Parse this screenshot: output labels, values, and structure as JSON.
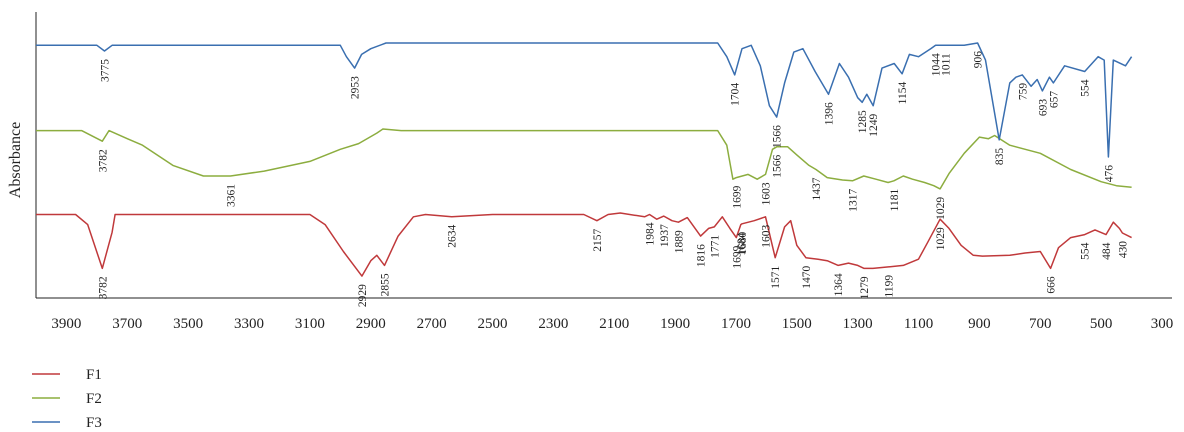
{
  "chart_data": {
    "type": "line",
    "title": "",
    "xlabel": "",
    "ylabel": "Absorbance",
    "x_ticks": [
      3900,
      3700,
      3500,
      3300,
      3100,
      2900,
      2700,
      2500,
      2300,
      2100,
      1900,
      1700,
      1500,
      1300,
      1100,
      900,
      700,
      500,
      300
    ],
    "xlim": [
      4000,
      300
    ],
    "x_reversed": true,
    "grid": false,
    "legend_position": "bottom-left",
    "series": [
      {
        "name": "F1",
        "color": "#c0393b",
        "baseline": 0.02,
        "points": [
          [
            4000,
            0.02
          ],
          [
            3870,
            0.02
          ],
          [
            3830,
            0.15
          ],
          [
            3782,
            0.72
          ],
          [
            3750,
            0.25
          ],
          [
            3740,
            0.02
          ],
          [
            3100,
            0.02
          ],
          [
            3050,
            0.15
          ],
          [
            2990,
            0.5
          ],
          [
            2929,
            0.82
          ],
          [
            2900,
            0.62
          ],
          [
            2880,
            0.55
          ],
          [
            2855,
            0.68
          ],
          [
            2810,
            0.3
          ],
          [
            2760,
            0.05
          ],
          [
            2720,
            0.02
          ],
          [
            2634,
            0.05
          ],
          [
            2500,
            0.02
          ],
          [
            2200,
            0.02
          ],
          [
            2157,
            0.1
          ],
          [
            2120,
            0.02
          ],
          [
            2080,
            0.0
          ],
          [
            2000,
            0.05
          ],
          [
            1984,
            0.02
          ],
          [
            1960,
            0.08
          ],
          [
            1937,
            0.04
          ],
          [
            1910,
            0.1
          ],
          [
            1889,
            0.12
          ],
          [
            1860,
            0.06
          ],
          [
            1816,
            0.3
          ],
          [
            1790,
            0.2
          ],
          [
            1771,
            0.18
          ],
          [
            1745,
            0.05
          ],
          [
            1720,
            0.2
          ],
          [
            1699,
            0.32
          ],
          [
            1684,
            0.15
          ],
          [
            1680,
            0.14
          ],
          [
            1640,
            0.1
          ],
          [
            1603,
            0.05
          ],
          [
            1571,
            0.58
          ],
          [
            1540,
            0.18
          ],
          [
            1520,
            0.1
          ],
          [
            1500,
            0.42
          ],
          [
            1470,
            0.58
          ],
          [
            1430,
            0.6
          ],
          [
            1400,
            0.62
          ],
          [
            1364,
            0.68
          ],
          [
            1330,
            0.65
          ],
          [
            1300,
            0.68
          ],
          [
            1279,
            0.72
          ],
          [
            1250,
            0.72
          ],
          [
            1199,
            0.7
          ],
          [
            1150,
            0.68
          ],
          [
            1100,
            0.6
          ],
          [
            1070,
            0.38
          ],
          [
            1029,
            0.08
          ],
          [
            1000,
            0.2
          ],
          [
            960,
            0.42
          ],
          [
            920,
            0.55
          ],
          [
            890,
            0.56
          ],
          [
            800,
            0.55
          ],
          [
            750,
            0.52
          ],
          [
            700,
            0.5
          ],
          [
            666,
            0.72
          ],
          [
            640,
            0.45
          ],
          [
            600,
            0.32
          ],
          [
            554,
            0.28
          ],
          [
            520,
            0.22
          ],
          [
            484,
            0.28
          ],
          [
            460,
            0.12
          ],
          [
            440,
            0.2
          ],
          [
            430,
            0.26
          ],
          [
            400,
            0.32
          ]
        ],
        "peak_labels": [
          "3782",
          "2929",
          "2855",
          "2634",
          "2157",
          "1984",
          "1937",
          "1889",
          "1816",
          "1771",
          "1699",
          "1684",
          "1680",
          "1603",
          "1571",
          "1470",
          "1364",
          "1279",
          "1199",
          "1029",
          "666",
          "554",
          "484",
          "430"
        ]
      },
      {
        "name": "F2",
        "color": "#8cad3f",
        "baseline": 0.02,
        "points": [
          [
            4000,
            0.02
          ],
          [
            3850,
            0.02
          ],
          [
            3782,
            0.15
          ],
          [
            3760,
            0.02
          ],
          [
            3700,
            0.12
          ],
          [
            3650,
            0.2
          ],
          [
            3550,
            0.45
          ],
          [
            3450,
            0.58
          ],
          [
            3361,
            0.58
          ],
          [
            3250,
            0.52
          ],
          [
            3100,
            0.4
          ],
          [
            3000,
            0.25
          ],
          [
            2940,
            0.18
          ],
          [
            2880,
            0.05
          ],
          [
            2860,
            0.0
          ],
          [
            2800,
            0.02
          ],
          [
            2500,
            0.02
          ],
          [
            2000,
            0.02
          ],
          [
            1760,
            0.02
          ],
          [
            1730,
            0.2
          ],
          [
            1710,
            0.62
          ],
          [
            1699,
            0.6
          ],
          [
            1660,
            0.56
          ],
          [
            1630,
            0.62
          ],
          [
            1603,
            0.56
          ],
          [
            1580,
            0.25
          ],
          [
            1566,
            0.22
          ],
          [
            1530,
            0.22
          ],
          [
            1500,
            0.32
          ],
          [
            1460,
            0.45
          ],
          [
            1437,
            0.5
          ],
          [
            1400,
            0.6
          ],
          [
            1350,
            0.63
          ],
          [
            1317,
            0.64
          ],
          [
            1280,
            0.58
          ],
          [
            1240,
            0.62
          ],
          [
            1200,
            0.66
          ],
          [
            1181,
            0.64
          ],
          [
            1150,
            0.58
          ],
          [
            1120,
            0.62
          ],
          [
            1080,
            0.66
          ],
          [
            1050,
            0.7
          ],
          [
            1029,
            0.74
          ],
          [
            1000,
            0.55
          ],
          [
            950,
            0.3
          ],
          [
            900,
            0.1
          ],
          [
            870,
            0.12
          ],
          [
            850,
            0.08
          ],
          [
            800,
            0.2
          ],
          [
            700,
            0.3
          ],
          [
            600,
            0.5
          ],
          [
            500,
            0.65
          ],
          [
            450,
            0.7
          ],
          [
            400,
            0.72
          ]
        ],
        "peak_labels": [
          "3782",
          "3361",
          "1699",
          "1603",
          "1566",
          "1437",
          "1317",
          "1181",
          "1029"
        ]
      },
      {
        "name": "F3",
        "color": "#3a6fb0",
        "baseline": 0.02,
        "points": [
          [
            4000,
            0.02
          ],
          [
            3800,
            0.02
          ],
          [
            3775,
            0.07
          ],
          [
            3750,
            0.02
          ],
          [
            3000,
            0.02
          ],
          [
            2980,
            0.12
          ],
          [
            2953,
            0.22
          ],
          [
            2930,
            0.1
          ],
          [
            2900,
            0.05
          ],
          [
            2850,
            0.0
          ],
          [
            2500,
            0.0
          ],
          [
            2100,
            0.0
          ],
          [
            1760,
            0.0
          ],
          [
            1730,
            0.12
          ],
          [
            1704,
            0.28
          ],
          [
            1680,
            0.05
          ],
          [
            1650,
            0.02
          ],
          [
            1620,
            0.2
          ],
          [
            1590,
            0.55
          ],
          [
            1566,
            0.65
          ],
          [
            1540,
            0.35
          ],
          [
            1510,
            0.08
          ],
          [
            1480,
            0.05
          ],
          [
            1440,
            0.25
          ],
          [
            1396,
            0.45
          ],
          [
            1360,
            0.18
          ],
          [
            1330,
            0.3
          ],
          [
            1300,
            0.48
          ],
          [
            1285,
            0.52
          ],
          [
            1270,
            0.45
          ],
          [
            1249,
            0.55
          ],
          [
            1220,
            0.22
          ],
          [
            1180,
            0.18
          ],
          [
            1154,
            0.27
          ],
          [
            1130,
            0.1
          ],
          [
            1100,
            0.12
          ],
          [
            1060,
            0.05
          ],
          [
            1044,
            0.02
          ],
          [
            1011,
            0.02
          ],
          [
            950,
            0.02
          ],
          [
            906,
            0.0
          ],
          [
            880,
            0.15
          ],
          [
            835,
            0.85
          ],
          [
            800,
            0.35
          ],
          [
            780,
            0.3
          ],
          [
            759,
            0.28
          ],
          [
            730,
            0.38
          ],
          [
            710,
            0.32
          ],
          [
            693,
            0.42
          ],
          [
            670,
            0.3
          ],
          [
            657,
            0.35
          ],
          [
            620,
            0.2
          ],
          [
            554,
            0.25
          ],
          [
            510,
            0.12
          ],
          [
            490,
            0.15
          ],
          [
            476,
            1.0
          ],
          [
            460,
            0.15
          ],
          [
            420,
            0.2
          ],
          [
            400,
            0.12
          ]
        ],
        "peak_labels": [
          "3775",
          "2953",
          "1704",
          "1566",
          "1396",
          "1285",
          "1249",
          "1154",
          "1044",
          "1011",
          "906",
          "835",
          "759",
          "693",
          "657",
          "554",
          "476"
        ]
      }
    ]
  }
}
